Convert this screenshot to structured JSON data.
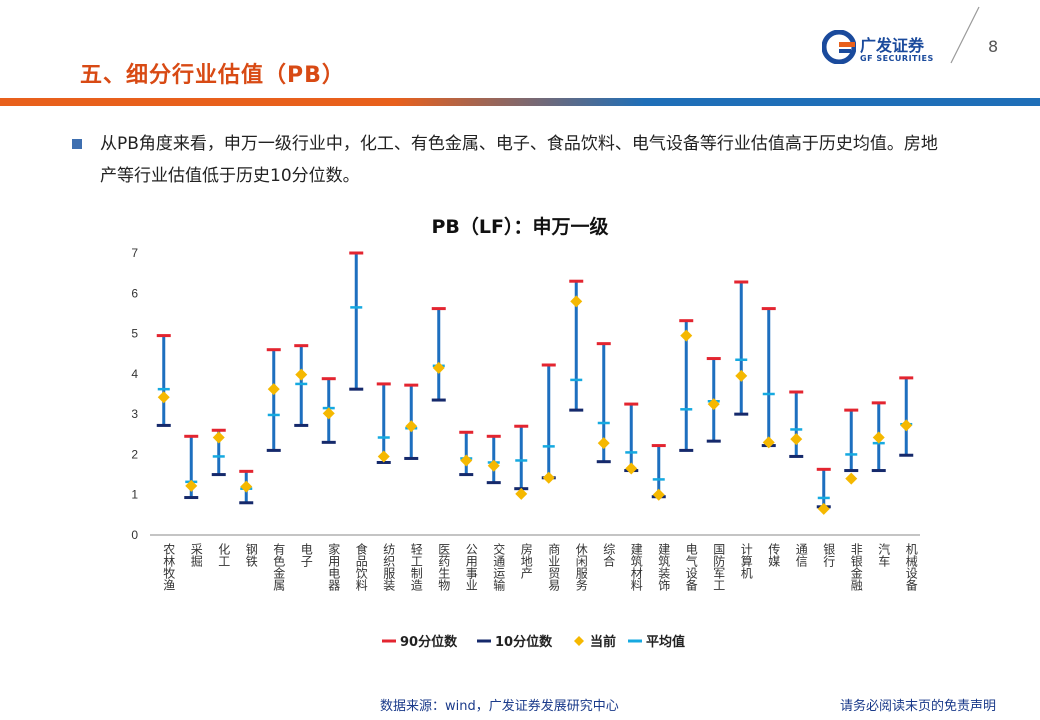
{
  "header": {
    "title": "五、细分行业估值（PB）",
    "logo_cn": "广发证券",
    "logo_en": "GF SECURITIES",
    "page_number": "8"
  },
  "bullet": {
    "text": "从PB角度来看，申万一级行业中，化工、有色金属、电子、食品饮料、电气设备等行业估值高于历史均值。房地产等行业估值低于历史10分位数。"
  },
  "colors": {
    "accent_orange": "#d84a14",
    "brand_blue": "#1a4a9c",
    "p90": "#e32530",
    "p10": "#15296b",
    "current": "#f5b800",
    "mean": "#16a9e0",
    "range": "#1d6fbf"
  },
  "chart_data": {
    "type": "range",
    "title": "PB（LF）：申万一级",
    "ylim": [
      0,
      7
    ],
    "yticks": [
      "0",
      "1",
      "2",
      "3",
      "4",
      "5",
      "6",
      "7"
    ],
    "categories": [
      "农林牧渔",
      "采掘",
      "化工",
      "钢铁",
      "有色金属",
      "电子",
      "家用电器",
      "食品饮料",
      "纺织服装",
      "轻工制造",
      "医药生物",
      "公用事业",
      "交通运输",
      "房地产",
      "商业贸易",
      "休闲服务",
      "综合",
      "建筑材料",
      "建筑装饰",
      "电气设备",
      "国防军工",
      "计算机",
      "传媒",
      "通信",
      "银行",
      "非银金融",
      "汽车",
      "机械设备"
    ],
    "series": [
      {
        "name": "90分位数",
        "values": [
          4.95,
          2.45,
          2.6,
          1.58,
          4.6,
          4.7,
          3.88,
          7.0,
          3.75,
          3.72,
          5.62,
          2.55,
          2.45,
          2.7,
          4.22,
          6.3,
          4.75,
          3.25,
          2.22,
          5.32,
          4.38,
          6.28,
          5.62,
          3.55,
          1.63,
          3.1,
          3.28,
          3.9
        ]
      },
      {
        "name": "10分位数",
        "values": [
          2.72,
          0.93,
          1.5,
          0.8,
          2.1,
          2.72,
          2.3,
          3.62,
          1.8,
          1.9,
          3.35,
          1.5,
          1.3,
          1.15,
          1.42,
          3.1,
          1.82,
          1.6,
          0.95,
          2.1,
          2.33,
          3.0,
          2.22,
          1.95,
          0.7,
          1.6,
          1.6,
          1.98
        ]
      },
      {
        "name": "当前",
        "values": [
          3.42,
          1.22,
          2.42,
          1.2,
          3.62,
          3.98,
          3.02,
          null,
          1.95,
          2.7,
          4.15,
          1.85,
          1.72,
          1.02,
          1.42,
          5.8,
          2.28,
          1.65,
          1.0,
          4.95,
          3.25,
          3.95,
          2.3,
          2.38,
          0.65,
          1.4,
          2.42,
          2.72
        ]
      },
      {
        "name": "平均值",
        "values": [
          3.62,
          1.32,
          1.95,
          1.15,
          2.98,
          3.75,
          3.15,
          5.65,
          2.42,
          2.65,
          4.2,
          1.9,
          1.8,
          1.85,
          2.2,
          3.85,
          2.78,
          2.05,
          1.38,
          3.12,
          3.32,
          4.35,
          3.5,
          2.62,
          0.92,
          2.0,
          2.28,
          2.75
        ]
      }
    ],
    "legend": {
      "position": "bottom",
      "labels": [
        "90分位数",
        "10分位数",
        "当前",
        "平均值"
      ]
    },
    "grid": false
  },
  "footer": {
    "source": "数据来源：wind，广发证券发展研究中心",
    "disclaimer": "请务必阅读末页的免责声明"
  }
}
